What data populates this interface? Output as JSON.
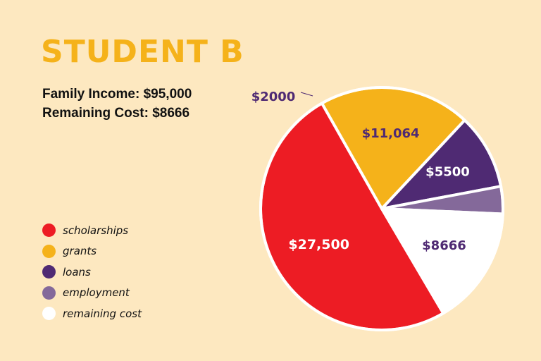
{
  "title": "STUDENT B",
  "family_income": "Family Income: $95,000",
  "remaining_cost_text": "Remaining Cost: $8666",
  "colors": {
    "background": "#FDE8C0",
    "title": "#F5B21A",
    "scholarships": "#ED1C24",
    "grants": "#F5B21A",
    "loans": "#4F2A73",
    "employment": "#84699A",
    "remaining_cost": "#FFFFFF",
    "label_dark": "#4F2A73"
  },
  "legend": [
    {
      "label": "scholarships",
      "color": "#ED1C24"
    },
    {
      "label": "grants",
      "color": "#F5B21A"
    },
    {
      "label": "loans",
      "color": "#4F2A73"
    },
    {
      "label": "employment",
      "color": "#84699A"
    },
    {
      "label": "remaining cost",
      "color": "#FFFFFF"
    }
  ],
  "chart_data": {
    "type": "pie",
    "title": "",
    "legend_position": "left",
    "slices": [
      {
        "category": "scholarships",
        "value": 27500,
        "label": "$27,500",
        "color": "#ED1C24"
      },
      {
        "category": "grants",
        "value": 11064,
        "label": "$11,064",
        "color": "#F5B21A"
      },
      {
        "category": "loans",
        "value": 5500,
        "label": "$5500",
        "color": "#4F2A73"
      },
      {
        "category": "employment",
        "value": 2000,
        "label": "$2000",
        "color": "#84699A"
      },
      {
        "category": "remaining cost",
        "value": 8666,
        "label": "$8666",
        "color": "#FFFFFF"
      }
    ]
  }
}
